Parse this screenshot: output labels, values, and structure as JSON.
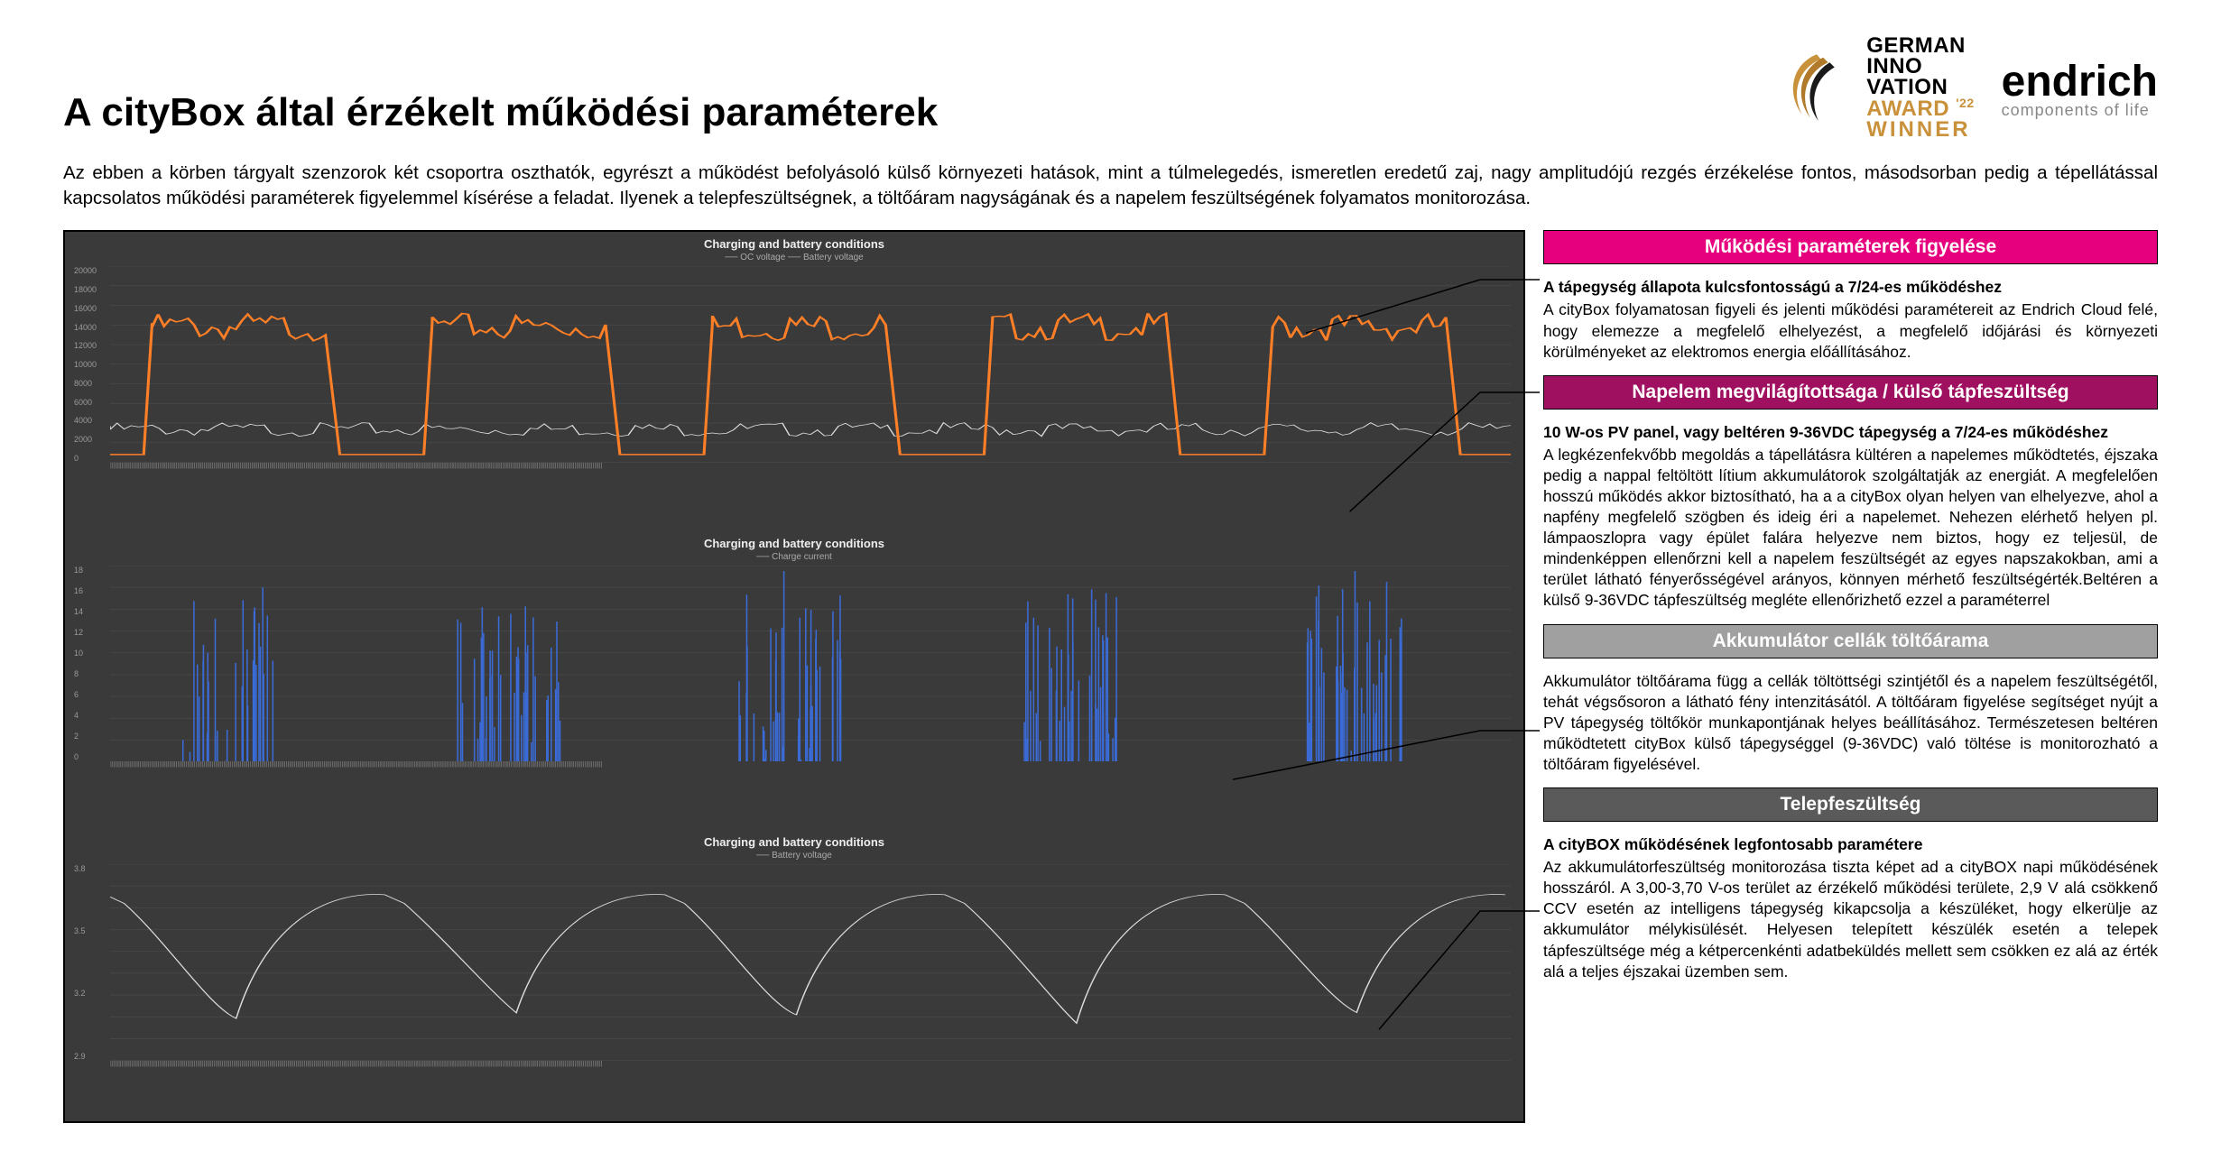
{
  "logos": {
    "gia": {
      "l1": "GERMAN",
      "l2": "INNO",
      "l3": "VATION",
      "l4a": "AWARD",
      "l4yr": "'22",
      "l5": "WINNER",
      "swoosh_colors": [
        "#c8913a",
        "#c8913a",
        "#1a1a1a"
      ]
    },
    "endrich": {
      "brand": "endrich",
      "tag": "components of life"
    }
  },
  "title": "A cityBox által érzékelt működési paraméterek",
  "intro": "Az ebben a körben tárgyalt szenzorok két csoportra oszthatók, egyrészt a működést befolyásoló külső környezeti hatások, mint a túlmelegedés, ismeretlen eredetű zaj, nagy amplitudójú rezgés érzékelése fontos, másodsorban pedig a tépellátással kapcsolatos működési paraméterek figyelemmel kísérése a feladat. Ilyenek a telepfeszültségnek, a töltőáram nagyságának és a napelem feszültségének folyamatos monitorozása.",
  "charts": {
    "bg": "#3a3a3a",
    "grid": "#4a4a4a",
    "title": "Charging and battery conditions",
    "xlabel_fill": "#8a8a8a",
    "c1": {
      "legend": "── OC voltage   ── Battery voltage",
      "series_a_color": "#ff7f27",
      "series_a_width": 2,
      "series_b_color": "#dddddd",
      "series_b_width": 1,
      "ylim": [
        0,
        20000
      ],
      "ytick": [
        0,
        2000,
        4000,
        6000,
        8000,
        10000,
        12000,
        14000,
        16000,
        18000,
        20000
      ],
      "orange_high": 14500,
      "orange_low": 800,
      "days": 5,
      "grey_level": 3700
    },
    "c2": {
      "legend": "── Charge current",
      "series_color": "#3b6bd6",
      "series_width": 1,
      "ylim": [
        0,
        18
      ],
      "ytick": [
        0,
        2,
        4,
        6,
        8,
        10,
        12,
        14,
        16,
        18
      ],
      "days": 5
    },
    "c3": {
      "legend": "── Battery voltage",
      "series_color": "#dddddd",
      "series_width": 1,
      "ylim": [
        2.9,
        3.8
      ],
      "days": 5
    }
  },
  "sections": {
    "s1": {
      "header": "Működési paraméterek figyelése",
      "lead": "A tápegység állapota kulcsfontosságú a 7/24-es működéshez",
      "body": "A cityBox folyamatosan figyeli és jelenti működési paramétereit az Endrich Cloud felé, hogy elemezze a megfelelő elhelyezést, a megfelelő időjárási és környezeti körülményeket az elektromos energia előállításához."
    },
    "s2": {
      "header": "Napelem megvilágítottsága / külső tápfeszültség",
      "lead": "10 W-os PV panel, vagy beltéren 9-36VDC tápegység a 7/24-es működéshez",
      "body": "A legkézenfekvőbb megoldás a tápellátásra kültéren a napelemes működtetés, éjszaka pedig a nappal feltöltött lítium akkumulátorok szolgáltatják az energiát. A megfelelően hosszú működés akkor biztosítható, ha a a cityBox olyan helyen van elhelyezve, ahol a napfény megfelelő szögben és ideig éri a napelemet. Nehezen elérhető helyen pl. lámpaoszlopra vagy épület falára helyezve nem biztos, hogy ez teljesül, de mindenképpen ellenőrzni kell a napelem feszültségét az egyes napszakokban, ami a terület látható fényerősségével arányos, könnyen mérhető feszültségérték.Beltéren a külső 9-36VDC tápfeszültség megléte ellenőrizhető ezzel a paraméterrel"
    },
    "s3": {
      "header": "Akkumulátor cellák töltőárama",
      "body": "Akkumulátor töltőárama függ a cellák töltöttségi szintjétől és a napelem feszültségétől, tehát végsősoron a látható fény intenzitásától. A töltőáram figyelése segítséget nyújt a PV tápegység töltőkör munkapontjának helyes beállításához. Természetesen beltéren működtetett cityBox külső tápegységgel (9-36VDC) való töltése is monitorozható a töltőáram figyelésével."
    },
    "s4": {
      "header": "Telepfeszültség",
      "lead": "A cityBOX működésének legfontosabb paramétere",
      "body": "Az akkumulátorfeszültség monitorozása tiszta képet ad a cityBOX napi működésének hosszáról. A 3,00-3,70 V-os terület az érzékelő működési területe, 2,9 V alá csökkenő CCV esetén az intelligens tápegység kikapcsolja a készüléket, hogy elkerülje az akkumulátor mélykisülését. Helyesen telepített készülék esetén a telepek tápfeszültsége még a kétpercenkénti adatbeküldés mellett sem csökken ez alá az érték alá a teljes éjszakai üzemben sem."
    }
  },
  "connectors": {
    "stroke": "#000000",
    "stroke_width": 1.5,
    "lines": [
      {
        "from": [
          1400,
          260
        ],
        "mid": [
          1690,
          230
        ],
        "to": [
          1760,
          230
        ]
      },
      {
        "from": [
          1470,
          470
        ],
        "mid": [
          1690,
          370
        ],
        "to": [
          1760,
          370
        ]
      },
      {
        "from": [
          1360,
          780
        ],
        "mid": [
          1690,
          600
        ],
        "to": [
          1760,
          600
        ]
      },
      {
        "from": [
          1500,
          1040
        ],
        "mid": [
          1690,
          770
        ],
        "to": [
          1760,
          770
        ]
      }
    ]
  }
}
